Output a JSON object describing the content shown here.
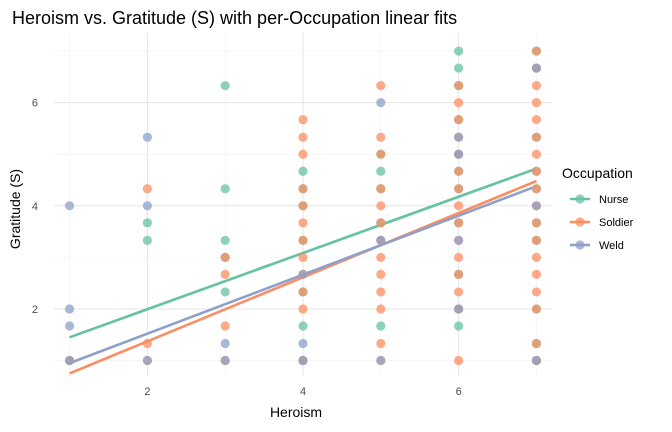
{
  "chart_data": {
    "type": "scatter",
    "title": "Heroism vs. Gratitude (S) with per-Occupation linear fits",
    "xlabel": "Heroism",
    "ylabel": "Gratitude (S)",
    "xlim": [
      0.8,
      7.2
    ],
    "ylim": [
      0.7,
      7.35
    ],
    "x_ticks": [
      2,
      4,
      6
    ],
    "y_ticks": [
      2,
      4,
      6
    ],
    "grid": true,
    "legend": {
      "title": "Occupation",
      "placement": "right"
    },
    "series": [
      {
        "name": "Nurse",
        "color": "#66c2a5",
        "fit": {
          "x": [
            1,
            7
          ],
          "y": [
            1.45,
            4.72
          ]
        },
        "points": [
          [
            1,
            1
          ],
          [
            2,
            3.33
          ],
          [
            2,
            3.67
          ],
          [
            3,
            6.33
          ],
          [
            3,
            4.33
          ],
          [
            3,
            3.33
          ],
          [
            3,
            3
          ],
          [
            3,
            2.33
          ],
          [
            4,
            4.67
          ],
          [
            4,
            4.33
          ],
          [
            4,
            4
          ],
          [
            4,
            3.33
          ],
          [
            4,
            2.33
          ],
          [
            4,
            1.67
          ],
          [
            4,
            1
          ],
          [
            5,
            5
          ],
          [
            5,
            4.67
          ],
          [
            5,
            4.33
          ],
          [
            5,
            3.67
          ],
          [
            5,
            3.33
          ],
          [
            5,
            1.67
          ],
          [
            6,
            7
          ],
          [
            6,
            6.67
          ],
          [
            6,
            6.33
          ],
          [
            6,
            5.67
          ],
          [
            6,
            5
          ],
          [
            6,
            4.67
          ],
          [
            6,
            4.33
          ],
          [
            6,
            3.67
          ],
          [
            6,
            2.67
          ],
          [
            6,
            2
          ],
          [
            6,
            1.67
          ],
          [
            7,
            7
          ],
          [
            7,
            6.67
          ],
          [
            7,
            5.33
          ],
          [
            7,
            4.67
          ],
          [
            7,
            4.33
          ],
          [
            7,
            3.67
          ],
          [
            7,
            3.33
          ],
          [
            7,
            2
          ],
          [
            7,
            1.33
          ],
          [
            7,
            1
          ]
        ]
      },
      {
        "name": "Soldier",
        "color": "#fc8d62",
        "fit": {
          "x": [
            1,
            7
          ],
          "y": [
            0.75,
            4.48
          ]
        },
        "points": [
          [
            1,
            1
          ],
          [
            2,
            4.33
          ],
          [
            2,
            1.33
          ],
          [
            2,
            1
          ],
          [
            3,
            3
          ],
          [
            3,
            2.67
          ],
          [
            3,
            1.67
          ],
          [
            3,
            1
          ],
          [
            4,
            5.67
          ],
          [
            4,
            5.33
          ],
          [
            4,
            5
          ],
          [
            4,
            4.33
          ],
          [
            4,
            4
          ],
          [
            4,
            3.67
          ],
          [
            4,
            3.33
          ],
          [
            4,
            3
          ],
          [
            4,
            2.67
          ],
          [
            4,
            2.33
          ],
          [
            4,
            2
          ],
          [
            4,
            1
          ],
          [
            5,
            6.33
          ],
          [
            5,
            5.33
          ],
          [
            5,
            5
          ],
          [
            5,
            4.33
          ],
          [
            5,
            4
          ],
          [
            5,
            3.67
          ],
          [
            5,
            3.33
          ],
          [
            5,
            3
          ],
          [
            5,
            2.67
          ],
          [
            5,
            2.33
          ],
          [
            5,
            2
          ],
          [
            5,
            1.33
          ],
          [
            5,
            1
          ],
          [
            6,
            6.33
          ],
          [
            6,
            6
          ],
          [
            6,
            5.67
          ],
          [
            6,
            5.33
          ],
          [
            6,
            5
          ],
          [
            6,
            4.67
          ],
          [
            6,
            4.33
          ],
          [
            6,
            4
          ],
          [
            6,
            3.67
          ],
          [
            6,
            3.33
          ],
          [
            6,
            3
          ],
          [
            6,
            2.67
          ],
          [
            6,
            2.33
          ],
          [
            6,
            2
          ],
          [
            6,
            1
          ],
          [
            7,
            7
          ],
          [
            7,
            6.67
          ],
          [
            7,
            6.33
          ],
          [
            7,
            6
          ],
          [
            7,
            5.67
          ],
          [
            7,
            5.33
          ],
          [
            7,
            5
          ],
          [
            7,
            4.67
          ],
          [
            7,
            4.33
          ],
          [
            7,
            4
          ],
          [
            7,
            3.67
          ],
          [
            7,
            3.33
          ],
          [
            7,
            3
          ],
          [
            7,
            2.67
          ],
          [
            7,
            2.33
          ],
          [
            7,
            2
          ],
          [
            7,
            1.33
          ],
          [
            7,
            1
          ]
        ]
      },
      {
        "name": "Weld",
        "color": "#8da0cb",
        "fit": {
          "x": [
            1,
            7
          ],
          "y": [
            0.95,
            4.38
          ]
        },
        "points": [
          [
            1,
            4
          ],
          [
            1,
            2
          ],
          [
            1,
            1.67
          ],
          [
            1,
            1
          ],
          [
            2,
            5.33
          ],
          [
            2,
            4
          ],
          [
            2,
            1
          ],
          [
            3,
            1.33
          ],
          [
            3,
            1
          ],
          [
            4,
            2.67
          ],
          [
            4,
            1.33
          ],
          [
            4,
            1
          ],
          [
            5,
            6
          ],
          [
            5,
            3.33
          ],
          [
            5,
            1
          ],
          [
            6,
            5.33
          ],
          [
            6,
            5
          ],
          [
            6,
            3.33
          ],
          [
            6,
            2
          ],
          [
            7,
            6.67
          ],
          [
            7,
            4
          ],
          [
            7,
            1
          ]
        ]
      }
    ]
  }
}
